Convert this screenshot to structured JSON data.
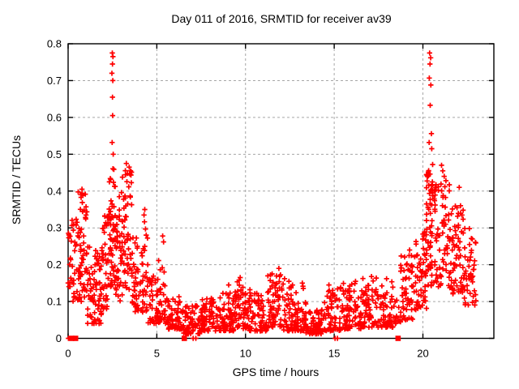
{
  "figure": {
    "background": "#ffffff"
  },
  "chart_data": {
    "type": "scatter",
    "title": "Day 011 of 2016, SRMTID for receiver av39",
    "xlabel": "GPS time / hours",
    "ylabel": "SRMTID / TECUs",
    "xlim": [
      0,
      24
    ],
    "ylim": [
      0,
      0.8
    ],
    "xticks": [
      0,
      5,
      10,
      15,
      20
    ],
    "xtick_labels": [
      "0",
      "5",
      "10",
      "15",
      "20"
    ],
    "yticks": [
      0,
      0.1,
      0.2,
      0.3,
      0.4,
      0.5,
      0.6,
      0.7,
      0.8
    ],
    "ytick_labels": [
      "0",
      "0.1",
      "0.2",
      "0.3",
      "0.4",
      "0.5",
      "0.6",
      "0.7",
      "0.8"
    ],
    "grid": true,
    "grid_style": "dashed",
    "legend": "none",
    "marker": "plus",
    "colors": {
      "marker": "#ff0000",
      "frame": "#000000",
      "grid": "#a6a6a6",
      "text": "#000000",
      "background": "#ffffff"
    },
    "series": {
      "representation": "density_bins",
      "bins_format": [
        "hour_start",
        "hour_end",
        "srmtid_min",
        "srmtid_max",
        "point_count",
        "low_bias_exponent_optional"
      ],
      "bins": [
        [
          0.0,
          0.15,
          0.14,
          0.32,
          10
        ],
        [
          0.15,
          0.55,
          0.09,
          0.34,
          28,
          1.2
        ],
        [
          0.55,
          1.1,
          0.1,
          0.4,
          60,
          1.2
        ],
        [
          1.1,
          1.9,
          0.04,
          0.25,
          75
        ],
        [
          1.9,
          2.3,
          0.08,
          0.34,
          40,
          1.3
        ],
        [
          2.3,
          2.65,
          0.14,
          0.47,
          55,
          1.2
        ],
        [
          2.65,
          3.05,
          0.1,
          0.4,
          45,
          1.2
        ],
        [
          3.05,
          3.6,
          0.13,
          0.46,
          55,
          1.2
        ],
        [
          3.6,
          4.2,
          0.07,
          0.28,
          45,
          1.4
        ],
        [
          4.2,
          4.5,
          0.07,
          0.32,
          25,
          1.3
        ],
        [
          4.5,
          5.1,
          0.04,
          0.17,
          40
        ],
        [
          5.1,
          5.5,
          0.04,
          0.23,
          30
        ],
        [
          5.5,
          6.5,
          0.025,
          0.115,
          62
        ],
        [
          6.5,
          7.5,
          0.012,
          0.09,
          65
        ],
        [
          7.5,
          8.5,
          0.02,
          0.11,
          70
        ],
        [
          8.5,
          9.4,
          0.02,
          0.125,
          68
        ],
        [
          9.4,
          9.85,
          0.03,
          0.16,
          35,
          1.4
        ],
        [
          9.85,
          11.25,
          0.02,
          0.125,
          95
        ],
        [
          11.25,
          12.05,
          0.03,
          0.18,
          62,
          1.5
        ],
        [
          12.05,
          13.4,
          0.02,
          0.148,
          92
        ],
        [
          13.4,
          14.45,
          0.012,
          0.08,
          70
        ],
        [
          14.45,
          15.35,
          0.02,
          0.14,
          62
        ],
        [
          15.35,
          16.5,
          0.025,
          0.152,
          78
        ],
        [
          16.5,
          17.4,
          0.03,
          0.165,
          62
        ],
        [
          17.4,
          18.35,
          0.03,
          0.155,
          55
        ],
        [
          18.35,
          18.75,
          0.04,
          0.12,
          15
        ],
        [
          18.75,
          19.6,
          0.05,
          0.23,
          58,
          1.3
        ],
        [
          19.6,
          20.2,
          0.08,
          0.3,
          52,
          1.2
        ],
        [
          20.2,
          20.6,
          0.14,
          0.46,
          58,
          1.1
        ],
        [
          20.6,
          21.5,
          0.14,
          0.42,
          72,
          1.2
        ],
        [
          21.5,
          22.3,
          0.12,
          0.37,
          66,
          1.2
        ],
        [
          22.3,
          23.0,
          0.09,
          0.3,
          46,
          1.3
        ]
      ],
      "outlier_points": [
        [
          2.49,
          0.775
        ],
        [
          2.53,
          0.765
        ],
        [
          2.5,
          0.745
        ],
        [
          2.47,
          0.72
        ],
        [
          2.52,
          0.7
        ],
        [
          2.5,
          0.655
        ],
        [
          2.51,
          0.605
        ],
        [
          2.48,
          0.532
        ],
        [
          2.54,
          0.5
        ],
        [
          3.28,
          0.475
        ],
        [
          3.44,
          0.465
        ],
        [
          3.52,
          0.455
        ],
        [
          0.78,
          0.405
        ],
        [
          0.72,
          0.39
        ],
        [
          4.32,
          0.35
        ],
        [
          4.28,
          0.335
        ],
        [
          5.33,
          0.278
        ],
        [
          5.38,
          0.262
        ],
        [
          9.05,
          0.145
        ],
        [
          9.7,
          0.165
        ],
        [
          10.25,
          0.132
        ],
        [
          11.5,
          0.175
        ],
        [
          11.88,
          0.19
        ],
        [
          12.2,
          0.162
        ],
        [
          12.45,
          0.155
        ],
        [
          13.2,
          0.15
        ],
        [
          14.7,
          0.145
        ],
        [
          16.2,
          0.155
        ],
        [
          17.1,
          0.168
        ],
        [
          17.95,
          0.162
        ],
        [
          19.25,
          0.24
        ],
        [
          19.35,
          0.225
        ],
        [
          20.38,
          0.775
        ],
        [
          20.44,
          0.762
        ],
        [
          20.4,
          0.745
        ],
        [
          20.36,
          0.707
        ],
        [
          20.45,
          0.688
        ],
        [
          20.41,
          0.633
        ],
        [
          20.48,
          0.556
        ],
        [
          20.35,
          0.532
        ],
        [
          20.5,
          0.515
        ],
        [
          20.55,
          0.472
        ],
        [
          21.05,
          0.47
        ],
        [
          21.12,
          0.455
        ],
        [
          21.2,
          0.44
        ],
        [
          21.3,
          0.428
        ],
        [
          22.05,
          0.41
        ]
      ],
      "zero_value_hours_bold": [
        0.2,
        0.42,
        6.55,
        18.6
      ],
      "zero_value_hours": [
        0.02,
        7.05,
        7.2,
        15.05,
        15.18
      ]
    }
  }
}
